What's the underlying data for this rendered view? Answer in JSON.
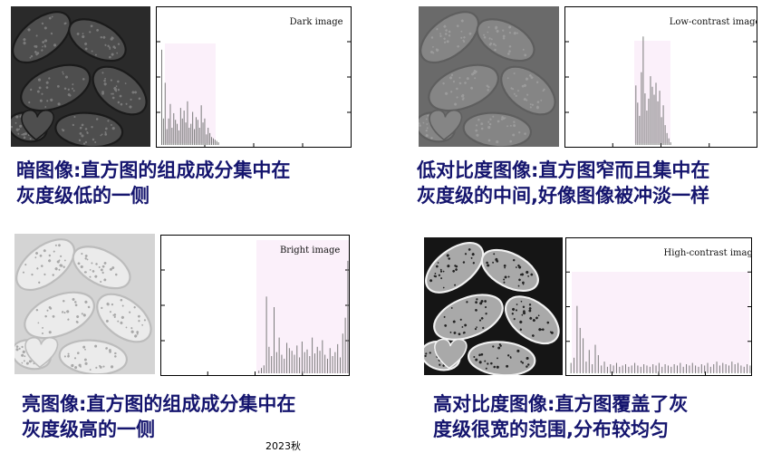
{
  "panels": [
    {
      "id": "dark",
      "histogram_label": "Dark image",
      "photo_tone": {
        "bg": "#2a2a2a",
        "bean": "#4e4e4e",
        "speck": "#7a7a7a",
        "edge": "#1a1a1a"
      },
      "caption": [
        "暗图像:直方图的组成成分集中在",
        "灰度级低的一侧"
      ],
      "histogram_bars": [
        0.72,
        0.2,
        0.47,
        0.12,
        0.2,
        0.31,
        0.13,
        0.24,
        0.19,
        0.16,
        0.11,
        0.28,
        0.2,
        0.26,
        0.17,
        0.33,
        0.13,
        0.16,
        0.25,
        0.12,
        0.21,
        0.19,
        0.13,
        0.3,
        0.17,
        0.2,
        0.08,
        0.13,
        0.09,
        0.06,
        0.05,
        0.04,
        0.03,
        0.02
      ]
    },
    {
      "id": "low-contrast",
      "histogram_label": "Low-contrast image",
      "photo_tone": {
        "bg": "#6a6a6a",
        "bean": "#858585",
        "speck": "#9b9b9b",
        "edge": "#5e5e5e"
      },
      "caption": [
        "低对比度图像:直方图窄而且集中在",
        "灰度级的中间,好像图像被冲淡一样"
      ],
      "histogram_bars": [
        0.45,
        0.32,
        0.22,
        0.55,
        0.82,
        0.39,
        0.26,
        0.35,
        0.52,
        0.44,
        0.38,
        0.47,
        0.33,
        0.41,
        0.21,
        0.3,
        0.15,
        0.09,
        0.05,
        0.02
      ]
    },
    {
      "id": "bright",
      "histogram_label": "Bright image",
      "photo_tone": {
        "bg": "#d4d4d4",
        "bean": "#ebebeb",
        "speck": "#a8a8a8",
        "edge": "#bcbcbc"
      },
      "caption": [
        "亮图像:直方图的组成成分集中在",
        "灰度级高的一侧"
      ],
      "histogram_bars": [
        0.02,
        0.04,
        0.06,
        0.58,
        0.2,
        0.13,
        0.5,
        0.16,
        0.27,
        0.14,
        0.11,
        0.23,
        0.19,
        0.17,
        0.14,
        0.21,
        0.12,
        0.24,
        0.16,
        0.18,
        0.13,
        0.27,
        0.15,
        0.2,
        0.17,
        0.25,
        0.14,
        0.11,
        0.19,
        0.13,
        0.16,
        0.22,
        0.12,
        0.3,
        0.42,
        0.85
      ]
    },
    {
      "id": "high-contrast",
      "histogram_label": "High-contrast image",
      "photo_tone": {
        "bg": "#151515",
        "bean": "#a9a9a9",
        "speck": "#222222",
        "edge": "#f2f2f2"
      },
      "caption": [
        "高对比度图像:直方图覆盖了灰",
        "度级很宽的范围,分布较均匀"
      ],
      "histogram_bars": [
        0.08,
        0.12,
        0.52,
        0.35,
        0.27,
        0.09,
        0.18,
        0.07,
        0.22,
        0.14,
        0.06,
        0.09,
        0.05,
        0.07,
        0.06,
        0.08,
        0.05,
        0.06,
        0.07,
        0.05,
        0.06,
        0.08,
        0.06,
        0.05,
        0.07,
        0.06,
        0.05,
        0.07,
        0.06,
        0.08,
        0.05,
        0.07,
        0.06,
        0.05,
        0.07,
        0.06,
        0.08,
        0.05,
        0.07,
        0.06,
        0.08,
        0.06,
        0.05,
        0.07,
        0.06,
        0.08,
        0.05,
        0.07,
        0.09,
        0.06,
        0.08,
        0.07,
        0.06,
        0.09,
        0.07,
        0.08,
        0.06,
        0.05,
        0.07,
        0.06
      ]
    }
  ],
  "footer": "2023秋"
}
